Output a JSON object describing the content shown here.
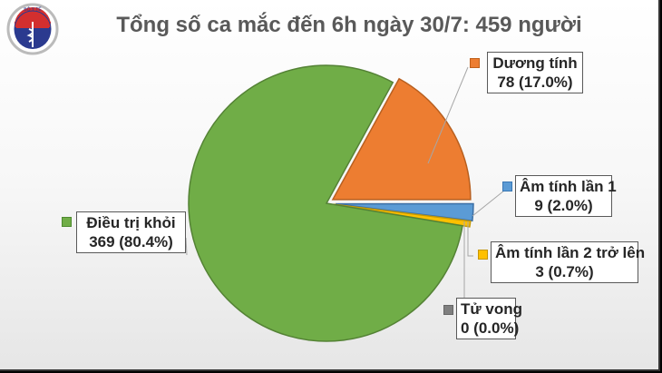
{
  "header": {
    "title": "Tổng số ca mắc đến 6h ngày 30/7: 459 người",
    "logo": {
      "top_text": "BỘ Y TẾ",
      "bottom_text": "MINISTRY OF HEALTH",
      "icon": "caduceus-icon"
    }
  },
  "labels": [
    {
      "name": "Dương tính",
      "value_text": "78 (17.0%)",
      "color": "#ED7D31"
    },
    {
      "name": "Âm tính lần 1",
      "value_text": "9 (2.0%)",
      "color": "#5B9BD5"
    },
    {
      "name": "Âm tính lần 2 trở lên",
      "value_text": "3 (0.7%)",
      "color": "#FFC000"
    },
    {
      "name": "Tử vong",
      "value_text": "0 (0.0%)",
      "color": "#7F7F7F"
    },
    {
      "name": "Điều trị khỏi",
      "value_text": "369 (80.4%)",
      "color": "#70AD47"
    }
  ],
  "chart_data": {
    "type": "pie",
    "title": "Tổng số ca mắc đến 6h ngày 30/7: 459 người",
    "total": 459,
    "categories": [
      "Dương tính",
      "Âm tính lần 1",
      "Âm tính lần 2 trở lên",
      "Tử vong",
      "Điều trị khỏi"
    ],
    "values": [
      78,
      9,
      3,
      0,
      369
    ],
    "percentages": [
      17.0,
      2.0,
      0.7,
      0.0,
      80.4
    ],
    "colors": [
      "#ED7D31",
      "#5B9BD5",
      "#FFC000",
      "#7F7F7F",
      "#70AD47"
    ],
    "exploded": [
      "Dương tính",
      "Âm tính lần 1",
      "Âm tính lần 2 trở lên"
    ],
    "legend": "data labels with color markers"
  }
}
